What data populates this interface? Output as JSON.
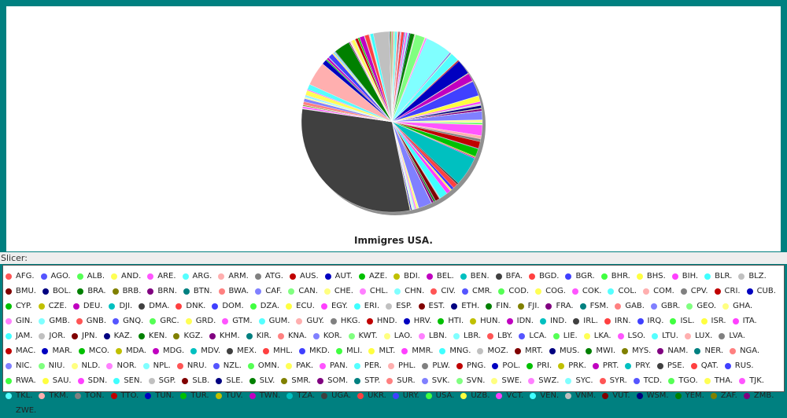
{
  "slicer_label": "Slicer:",
  "chart_data": {
    "type": "pie",
    "title": "Immigres USA.",
    "palette": [
      "#ff5555",
      "#5555ff",
      "#55ff55",
      "#ffff55",
      "#ff55ff",
      "#55ffff",
      "#ffafaf",
      "#808080",
      "#c00000",
      "#0000c0",
      "#00c000",
      "#c0c000",
      "#c000c0",
      "#00c0c0",
      "#404040",
      "#ff4040",
      "#4040ff",
      "#40ff40",
      "#ffff40",
      "#ff40ff",
      "#40ffff",
      "#c0c0c0",
      "#800000",
      "#000080",
      "#008000",
      "#808000",
      "#800080",
      "#008080",
      "#ff8080",
      "#8080ff",
      "#80ff80",
      "#ffff80",
      "#ff80ff",
      "#80ffff"
    ],
    "categories": [
      "AFG.",
      "AGO.",
      "ALB.",
      "AND.",
      "ARE.",
      "ARG.",
      "ARM.",
      "ATG.",
      "AUS.",
      "AUT.",
      "AZE.",
      "BDI.",
      "BEL.",
      "BEN.",
      "BFA.",
      "BGD.",
      "BGR.",
      "BHR.",
      "BHS.",
      "BIH.",
      "BLR.",
      "BLZ.",
      "BMU.",
      "BOL.",
      "BRA.",
      "BRB.",
      "BRN.",
      "BTN.",
      "BWA.",
      "CAF.",
      "CAN.",
      "CHE.",
      "CHL.",
      "CHN.",
      "CIV.",
      "CMR.",
      "COD.",
      "COG.",
      "COK.",
      "COL.",
      "COM.",
      "CPV.",
      "CRI.",
      "CUB.",
      "CYP.",
      "CZE.",
      "DEU.",
      "DJI.",
      "DMA.",
      "DNK.",
      "DOM.",
      "DZA.",
      "ECU.",
      "EGY.",
      "ERI.",
      "ESP.",
      "EST.",
      "ETH.",
      "FIN.",
      "FJI.",
      "FRA.",
      "FSM.",
      "GAB.",
      "GBR.",
      "GEO.",
      "GHA.",
      "GIN.",
      "GMB.",
      "GNB.",
      "GNQ.",
      "GRC.",
      "GRD.",
      "GTM.",
      "GUM.",
      "GUY.",
      "HKG.",
      "HND.",
      "HRV.",
      "HTI.",
      "HUN.",
      "IDN.",
      "IND.",
      "IRL.",
      "IRN.",
      "IRQ.",
      "ISL.",
      "ISR.",
      "ITA.",
      "JAM.",
      "JOR.",
      "JPN.",
      "KAZ.",
      "KEN.",
      "KGZ.",
      "KHM.",
      "KIR.",
      "KNA.",
      "KOR.",
      "KWT.",
      "LAO.",
      "LBN.",
      "LBR.",
      "LBY.",
      "LCA.",
      "LIE.",
      "LKA.",
      "LSO.",
      "LTU.",
      "LUX.",
      "LVA.",
      "MAC.",
      "MAR.",
      "MCO.",
      "MDA.",
      "MDG.",
      "MDV.",
      "MEX.",
      "MHL.",
      "MKD.",
      "MLI.",
      "MLT.",
      "MMR.",
      "MNG.",
      "MOZ.",
      "MRT.",
      "MUS.",
      "MWI.",
      "MYS.",
      "NAM.",
      "NER.",
      "NGA.",
      "NIC.",
      "NIU.",
      "NLD.",
      "NOR.",
      "NPL.",
      "NRU.",
      "NZL.",
      "OMN.",
      "PAK.",
      "PAN.",
      "PER.",
      "PHL.",
      "PLW.",
      "PNG.",
      "POL.",
      "PRI.",
      "PRK.",
      "PRT.",
      "PRY.",
      "PSE.",
      "QAT.",
      "RUS.",
      "RWA.",
      "SAU.",
      "SDN.",
      "SEN.",
      "SGP.",
      "SLB.",
      "SLE.",
      "SLV.",
      "SMR.",
      "SOM.",
      "STP.",
      "SUR.",
      "SVK.",
      "SVN.",
      "SWE.",
      "SWZ.",
      "SYC.",
      "SYR.",
      "TCD.",
      "TGO.",
      "THA.",
      "TJK.",
      "TKL.",
      "TKM.",
      "TON.",
      "TTO.",
      "TUN.",
      "TUR.",
      "TUV.",
      "TWN.",
      "TZA.",
      "UGA.",
      "UKR.",
      "URY.",
      "USA.",
      "UZB.",
      "VCT.",
      "VEN.",
      "VNM.",
      "VUT.",
      "WSM.",
      "YEM.",
      "ZAF.",
      "ZMB.",
      "ZWE."
    ],
    "values": [
      0.2,
      0.05,
      0.2,
      0.02,
      0.1,
      0.4,
      0.2,
      0.05,
      0.2,
      0.1,
      0.05,
      0.03,
      0.1,
      0.03,
      0.03,
      0.5,
      0.2,
      0.03,
      0.1,
      0.3,
      0.2,
      0.1,
      0.03,
      0.2,
      0.8,
      0.1,
      0.02,
      0.05,
      0.02,
      0.02,
      1.8,
      0.1,
      0.3,
      5.0,
      0.05,
      0.2,
      0.1,
      0.05,
      0.01,
      1.6,
      0.01,
      0.1,
      0.2,
      2.8,
      0.03,
      0.1,
      1.5,
      0.01,
      0.05,
      0.1,
      2.8,
      0.05,
      1.1,
      0.4,
      0.1,
      0.2,
      0.03,
      0.5,
      0.05,
      0.1,
      0.4,
      0.02,
      0.01,
      1.6,
      0.05,
      0.4,
      0.05,
      0.05,
      0.01,
      0.01,
      0.3,
      0.1,
      2.0,
      0.01,
      0.6,
      0.5,
      1.3,
      0.1,
      1.5,
      0.2,
      0.2,
      5.5,
      0.3,
      0.9,
      0.5,
      0.02,
      0.3,
      0.8,
      1.5,
      0.2,
      0.8,
      0.1,
      0.3,
      0.02,
      0.4,
      0.01,
      0.05,
      2.5,
      0.05,
      0.4,
      0.3,
      0.2,
      0.03,
      0.05,
      0.01,
      0.1,
      0.01,
      0.1,
      0.01,
      0.05,
      0.05,
      0.2,
      0.01,
      0.1,
      0.01,
      0.01,
      32,
      0.05,
      0.05,
      0.03,
      0.02,
      0.3,
      0.05,
      0.01,
      0.03,
      0.01,
      0.01,
      0.2,
      0.01,
      0.02,
      0.6,
      0.6,
      0.01,
      0.2,
      0.05,
      0.3,
      0.01,
      0.1,
      0.01,
      0.9,
      0.2,
      1.0,
      4.5,
      0.01,
      0.01,
      0.9,
      0.2,
      0.05,
      0.4,
      0.05,
      0.05,
      0.01,
      0.9,
      0.02,
      0.2,
      0.1,
      0.2,
      0.1,
      0.01,
      0.1,
      3.0,
      0.01,
      0.2,
      0.01,
      0.03,
      0.05,
      0.02,
      0.1,
      0.01,
      0.01,
      0.1,
      0.01,
      0.03,
      0.6,
      0.02,
      0.01,
      0.01,
      0.1,
      0.5,
      0.03,
      0.3,
      0.01,
      0.9,
      0.05,
      0.05,
      0.8,
      0.1,
      0,
      0.1,
      0.05,
      0.6,
      3.0,
      0.01,
      0.1,
      0.1,
      0.2,
      0.03,
      0.05
    ]
  }
}
